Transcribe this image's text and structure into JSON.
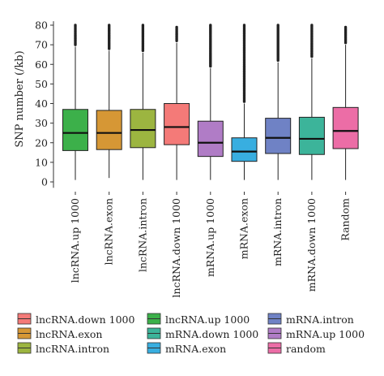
{
  "chart_data": {
    "type": "boxplot",
    "ylabel": "SNP number (/kb)",
    "ylim": [
      -3,
      82
    ],
    "yticks": [
      0,
      10,
      20,
      30,
      40,
      50,
      60,
      70,
      80
    ],
    "categories": [
      "lncRNA.up 1000",
      "lncRNA.exon",
      "lncRNA.intron",
      "lncRNA.down 1000",
      "mRNA.up 1000",
      "mRNA.exon",
      "mRNA.intron",
      "mRNA.down 1000",
      "Random"
    ],
    "boxes": [
      {
        "category": "lncRNA.up 1000",
        "color": "#3cb04a",
        "min": 1,
        "q1": 16,
        "median": 25,
        "q3": 37,
        "whisker_high": 69,
        "outlier_max": 80,
        "outlier_start": 70
      },
      {
        "category": "lncRNA.exon",
        "color": "#d69735",
        "min": 2,
        "q1": 16.5,
        "median": 25,
        "q3": 36.5,
        "whisker_high": 67,
        "outlier_max": 80,
        "outlier_start": 68
      },
      {
        "category": "lncRNA.intron",
        "color": "#9cb540",
        "min": 1,
        "q1": 17.5,
        "median": 26.5,
        "q3": 37,
        "whisker_high": 66,
        "outlier_max": 80,
        "outlier_start": 67
      },
      {
        "category": "lncRNA.down 1000",
        "color": "#f47a78",
        "min": 1,
        "q1": 19,
        "median": 28,
        "q3": 40,
        "whisker_high": 71,
        "outlier_max": 79,
        "outlier_start": 72
      },
      {
        "category": "mRNA.up 1000",
        "color": "#b07cc6",
        "min": 1,
        "q1": 13,
        "median": 20,
        "q3": 31,
        "whisker_high": 58,
        "outlier_max": 80,
        "outlier_start": 59
      },
      {
        "category": "mRNA.exon",
        "color": "#38aee0",
        "min": 1,
        "q1": 10.5,
        "median": 15.5,
        "q3": 22.5,
        "whisker_high": 40,
        "outlier_max": 80,
        "outlier_start": 41
      },
      {
        "category": "mRNA.intron",
        "color": "#6f82c5",
        "min": 1,
        "q1": 14.5,
        "median": 22.5,
        "q3": 32.5,
        "whisker_high": 61,
        "outlier_max": 80,
        "outlier_start": 62
      },
      {
        "category": "mRNA.down 1000",
        "color": "#3cb49a",
        "min": 1,
        "q1": 14,
        "median": 22,
        "q3": 33,
        "whisker_high": 63,
        "outlier_max": 80,
        "outlier_start": 64
      },
      {
        "category": "Random",
        "color": "#ec6da6",
        "min": 1,
        "q1": 17,
        "median": 26,
        "q3": 38,
        "whisker_high": 70,
        "outlier_max": 79,
        "outlier_start": 71
      }
    ],
    "grid": false,
    "legend": {
      "position": "bottom",
      "columns": 3,
      "entries": [
        {
          "label": "lncRNA.down 1000",
          "color": "#f47a78"
        },
        {
          "label": "lncRNA.exon",
          "color": "#d69735"
        },
        {
          "label": "lncRNA.intron",
          "color": "#9cb540"
        },
        {
          "label": "lncRNA.up 1000",
          "color": "#3cb04a"
        },
        {
          "label": "mRNA.down 1000",
          "color": "#3cb49a"
        },
        {
          "label": "mRNA.exon",
          "color": "#38aee0"
        },
        {
          "label": "mRNA.intron",
          "color": "#6f82c5"
        },
        {
          "label": "mRNA.up 1000",
          "color": "#b07cc6"
        },
        {
          "label": "random",
          "color": "#ec6da6"
        }
      ]
    }
  }
}
